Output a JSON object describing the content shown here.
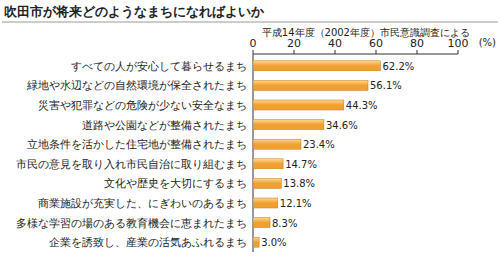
{
  "chart_data": {
    "type": "bar",
    "orientation": "horizontal",
    "title": "吹田市が将来どのようなまちになればよいか",
    "subtitle": "平成14年度（2002年度）市民意識調査による",
    "ylabel": "(%)",
    "categories": [
      "すべての人が安心して暮らせるまち",
      "緑地や水辺などの自然環境が保全されたまち",
      "災害や犯罪などの危険が少ない安全なまち",
      "道路や公園などが整備されたまち",
      "立地条件を活かした住宅地が整備されたまち",
      "市民の意見を取り入れ市民自治に取り組むまち",
      "文化や歴史を大切にするまち",
      "商業施設が充実した、にぎわいのあるまち",
      "多様な学習の場のある教育機会に恵まれたまち",
      "企業を誘致し、産業の活気あふれるまち"
    ],
    "values": [
      62.2,
      56.1,
      44.3,
      34.6,
      23.4,
      14.7,
      13.8,
      12.1,
      8.3,
      3.0
    ],
    "value_labels": [
      "62.2%",
      "56.1%",
      "44.3%",
      "34.6%",
      "23.4%",
      "14.7%",
      "13.8%",
      "12.1%",
      "8.3%",
      "3.0%"
    ],
    "data_labels": true,
    "color": "#f0a030",
    "ylim": [
      0,
      100
    ],
    "yticks": [
      0,
      20,
      40,
      60,
      80,
      100
    ],
    "grid": false
  }
}
